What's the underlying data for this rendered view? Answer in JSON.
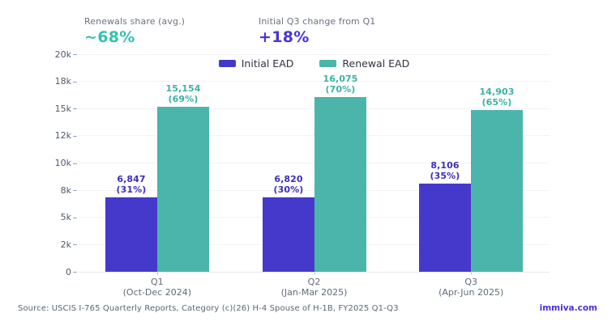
{
  "header": {
    "stat1": {
      "label": "Renewals share (avg.)",
      "value": "~68%"
    },
    "stat2": {
      "label": "Initial Q3 change from Q1",
      "value": "+18%"
    }
  },
  "colors": {
    "initial_bar": "#4539cc",
    "initial_label": "#3a2fbd",
    "renewal_bar": "#4cb5ab",
    "renewal_label": "#3ab3a3",
    "stat_teal": "#32c3ad",
    "stat_purple": "#4634dc",
    "grid": "#f2f3f7",
    "brand_purple": "#4c2fdd"
  },
  "chart_data": {
    "type": "bar",
    "title": "",
    "categories": [
      [
        "Q1",
        "(Oct-Dec 2024)"
      ],
      [
        "Q2",
        "(Jan-Mar 2025)"
      ],
      [
        "Q3",
        "(Apr-Jun 2025)"
      ]
    ],
    "series": [
      {
        "name": "Initial EAD",
        "values": [
          6847,
          6820,
          8106
        ],
        "labels": [
          [
            "6,847",
            "(31%)"
          ],
          [
            "6,820",
            "(30%)"
          ],
          [
            "8,106",
            "(35%)"
          ]
        ]
      },
      {
        "name": "Renewal EAD",
        "values": [
          15154,
          16075,
          14903
        ],
        "labels": [
          [
            "15,154",
            "(69%)"
          ],
          [
            "16,075",
            "(70%)"
          ],
          [
            "14,903",
            "(65%)"
          ]
        ]
      }
    ],
    "ylim": [
      0,
      20000
    ],
    "yticks": [
      {
        "v": 0,
        "label": "0"
      },
      {
        "v": 2500,
        "label": "2k"
      },
      {
        "v": 5000,
        "label": "5k"
      },
      {
        "v": 7500,
        "label": "8k"
      },
      {
        "v": 10000,
        "label": "10k"
      },
      {
        "v": 12500,
        "label": "12k"
      },
      {
        "v": 15000,
        "label": "15k"
      },
      {
        "v": 17500,
        "label": "18k"
      },
      {
        "v": 20000,
        "label": "20k"
      }
    ],
    "legend_position": "top-center",
    "grid": true
  },
  "footer": {
    "source": "Source: USCIS I-765 Quarterly Reports, Category (c)(26) H-4 Spouse of H-1B, FY2025 Q1-Q3",
    "brand": "immiva.com"
  }
}
